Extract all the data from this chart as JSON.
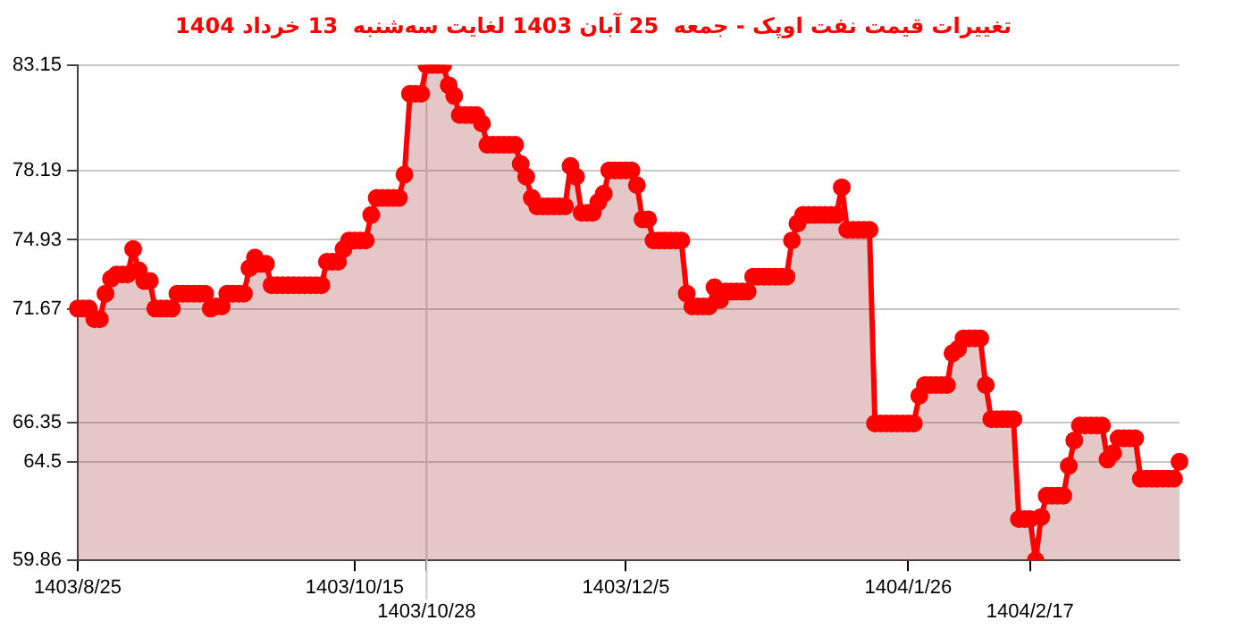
{
  "chart_data": {
    "type": "area",
    "title": "تغییرات قیمت نفت اوپک - جمعه  25 آبان 1403 لغایت سه‌شنبه  13 خرداد 1404",
    "categories": [
      "1403/8/25",
      null,
      null,
      null,
      null,
      null,
      null,
      null,
      null,
      null,
      null,
      null,
      null,
      null,
      null,
      null,
      null,
      null,
      null,
      null,
      null,
      null,
      null,
      null,
      null,
      null,
      null,
      null,
      null,
      null,
      null,
      null,
      null,
      null,
      null,
      null,
      null,
      null,
      null,
      null,
      null,
      null,
      null,
      null,
      null,
      null,
      null,
      null,
      null,
      null,
      "1403/10/15",
      null,
      null,
      null,
      null,
      null,
      null,
      null,
      null,
      null,
      null,
      null,
      null,
      "1403/10/28",
      null,
      null,
      null,
      null,
      null,
      null,
      null,
      null,
      null,
      null,
      null,
      null,
      null,
      null,
      null,
      null,
      null,
      null,
      null,
      null,
      null,
      null,
      null,
      null,
      null,
      null,
      null,
      null,
      null,
      null,
      null,
      null,
      null,
      null,
      null,
      "1403/12/5",
      null,
      null,
      null,
      null,
      null,
      null,
      null,
      null,
      null,
      null,
      null,
      null,
      null,
      null,
      null,
      null,
      null,
      null,
      null,
      null,
      null,
      null,
      null,
      null,
      null,
      null,
      null,
      null,
      null,
      null,
      null,
      null,
      null,
      null,
      null,
      null,
      null,
      null,
      null,
      null,
      null,
      null,
      null,
      null,
      null,
      null,
      null,
      null,
      null,
      null,
      "1404/1/26",
      null,
      null,
      null,
      null,
      null,
      null,
      null,
      null,
      null,
      null,
      null,
      null,
      null,
      null,
      null,
      null,
      null,
      null,
      null,
      null,
      null,
      "1404/2/17",
      null,
      null,
      null,
      null,
      null,
      null,
      null,
      null,
      null,
      null,
      null,
      null,
      null,
      null,
      null,
      null,
      null,
      null,
      null,
      null,
      null,
      null,
      null,
      null,
      null,
      null,
      null
    ],
    "series": [
      {
        "color": "#ff0000",
        "values": [
          71.7,
          71.7,
          71.7,
          71.2,
          71.2,
          72.4,
          73.1,
          73.3,
          73.3,
          73.3,
          74.5,
          73.5,
          73.0,
          73.0,
          71.7,
          71.7,
          71.7,
          71.7,
          72.4,
          72.4,
          72.4,
          72.4,
          72.4,
          72.4,
          71.7,
          71.8,
          71.8,
          72.4,
          72.4,
          72.4,
          72.4,
          73.6,
          74.1,
          73.8,
          73.8,
          72.8,
          72.8,
          72.8,
          72.8,
          72.8,
          72.8,
          72.8,
          72.8,
          72.8,
          72.8,
          73.9,
          73.9,
          73.9,
          74.5,
          74.9,
          74.9,
          74.9,
          74.9,
          76.1,
          76.9,
          76.9,
          76.9,
          76.9,
          76.9,
          78.0,
          81.8,
          81.8,
          81.8,
          83.15,
          83.15,
          83.15,
          83.15,
          82.2,
          81.7,
          80.8,
          80.8,
          80.8,
          80.8,
          80.4,
          79.4,
          79.4,
          79.4,
          79.4,
          79.4,
          79.4,
          78.5,
          77.9,
          76.9,
          76.5,
          76.5,
          76.5,
          76.5,
          76.5,
          76.5,
          78.4,
          77.9,
          76.2,
          76.2,
          76.2,
          76.7,
          77.1,
          78.2,
          78.2,
          78.2,
          78.2,
          78.2,
          77.5,
          75.9,
          75.9,
          74.9,
          74.9,
          74.9,
          74.9,
          74.9,
          74.9,
          72.4,
          71.8,
          71.8,
          71.8,
          71.8,
          72.7,
          72.1,
          72.5,
          72.5,
          72.5,
          72.5,
          72.5,
          73.2,
          73.2,
          73.2,
          73.2,
          73.2,
          73.2,
          73.2,
          74.9,
          75.7,
          76.1,
          76.1,
          76.1,
          76.1,
          76.1,
          76.1,
          76.1,
          77.4,
          75.4,
          75.4,
          75.4,
          75.4,
          75.4,
          66.3,
          66.3,
          66.3,
          66.3,
          66.3,
          66.3,
          66.3,
          66.3,
          67.6,
          68.1,
          68.1,
          68.1,
          68.1,
          68.1,
          69.6,
          69.8,
          70.3,
          70.3,
          70.3,
          70.3,
          68.1,
          66.5,
          66.5,
          66.5,
          66.5,
          66.5,
          61.8,
          61.8,
          61.8,
          59.86,
          61.9,
          62.9,
          62.9,
          62.9,
          62.9,
          64.3,
          65.5,
          66.2,
          66.2,
          66.2,
          66.2,
          66.2,
          64.6,
          64.9,
          65.6,
          65.6,
          65.6,
          65.6,
          63.7,
          63.7,
          63.7,
          63.7,
          63.7,
          63.7,
          63.7,
          64.5
        ]
      }
    ],
    "ylim": [
      59.86,
      83.15
    ],
    "yticks": [
      59.86,
      64.5,
      66.35,
      71.67,
      74.93,
      78.19,
      83.15
    ],
    "ref_lines": [
      {
        "axis": "x",
        "value": "1403/10/28",
        "color": "#cccccc"
      }
    ],
    "grid": "y",
    "legend": false,
    "marker": "circle",
    "line_style": "solid"
  }
}
